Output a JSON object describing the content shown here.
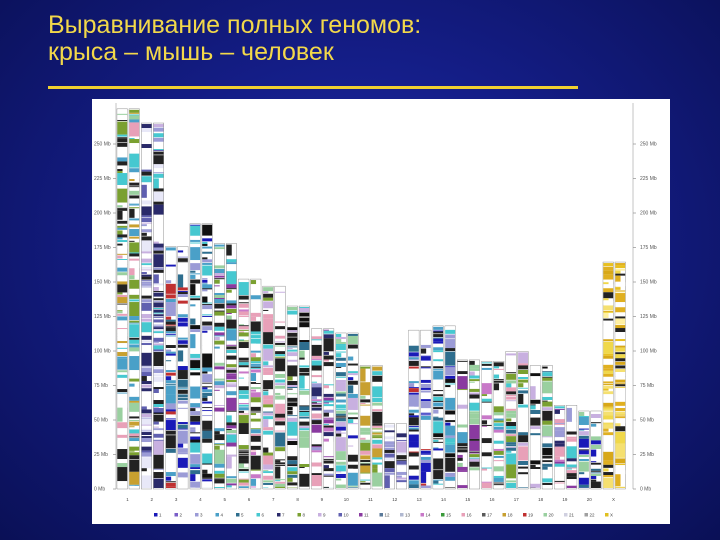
{
  "title": {
    "line1": "Выравнивание полных геномов:",
    "line2": "крыса – мышь – человек"
  },
  "colors": {
    "title": "#f2d84a",
    "rule": "#f0d030",
    "background": "#141d86",
    "panel": "#ffffff"
  },
  "figure": {
    "left_axis_ticks": [
      "0 Mb",
      "25 Mb",
      "50 Mb",
      "75 Mb",
      "100 Mb",
      "125 Mb",
      "150 Mb",
      "175 Mb",
      "200 Mb",
      "225 Mb",
      "250 Mb"
    ],
    "right_axis_ticks": [
      "0 Mb",
      "25 Mb",
      "50 Mb",
      "75 Mb",
      "100 Mb",
      "125 Mb",
      "150 Mb",
      "175 Mb",
      "200 Mb",
      "225 Mb",
      "250 Mb"
    ],
    "chromosomes": [
      {
        "label": "1",
        "length": 268
      },
      {
        "label": "2",
        "length": 258
      },
      {
        "label": "3",
        "length": 171
      },
      {
        "label": "4",
        "length": 187
      },
      {
        "label": "5",
        "length": 173
      },
      {
        "label": "6",
        "length": 148
      },
      {
        "label": "7",
        "length": 143
      },
      {
        "label": "8",
        "length": 129
      },
      {
        "label": "9",
        "length": 113
      },
      {
        "label": "10",
        "length": 110
      },
      {
        "label": "11",
        "length": 87
      },
      {
        "label": "12",
        "length": 46
      },
      {
        "label": "13",
        "length": 112
      },
      {
        "label": "14",
        "length": 115
      },
      {
        "label": "15",
        "length": 91
      },
      {
        "label": "16",
        "length": 90
      },
      {
        "label": "17",
        "length": 97
      },
      {
        "label": "18",
        "length": 87
      },
      {
        "label": "19",
        "length": 59
      },
      {
        "label": "20",
        "length": 55
      },
      {
        "label": "X",
        "length": 160
      }
    ],
    "legend": [
      "1",
      "2",
      "3",
      "4",
      "5",
      "6",
      "7",
      "8",
      "9",
      "10",
      "11",
      "12",
      "13",
      "14",
      "15",
      "16",
      "17",
      "18",
      "19",
      "20",
      "21",
      "22",
      "X"
    ],
    "legend_colors": [
      "#1a1ab8",
      "#7a5ec8",
      "#9b9bd6",
      "#4aa0c8",
      "#2e6e8e",
      "#46c8d0",
      "#2a2a6a",
      "#7aa030",
      "#c8b0e0",
      "#6060b0",
      "#8a3aa0",
      "#5a7a9a",
      "#b0b8d0",
      "#c878c8",
      "#3a9a3a",
      "#e8a0b8",
      "#5a5a5a",
      "#c8a030",
      "#c03030",
      "#9ad0a0",
      "#d0d0e0",
      "#a0a0a0",
      "#e0c020"
    ]
  }
}
